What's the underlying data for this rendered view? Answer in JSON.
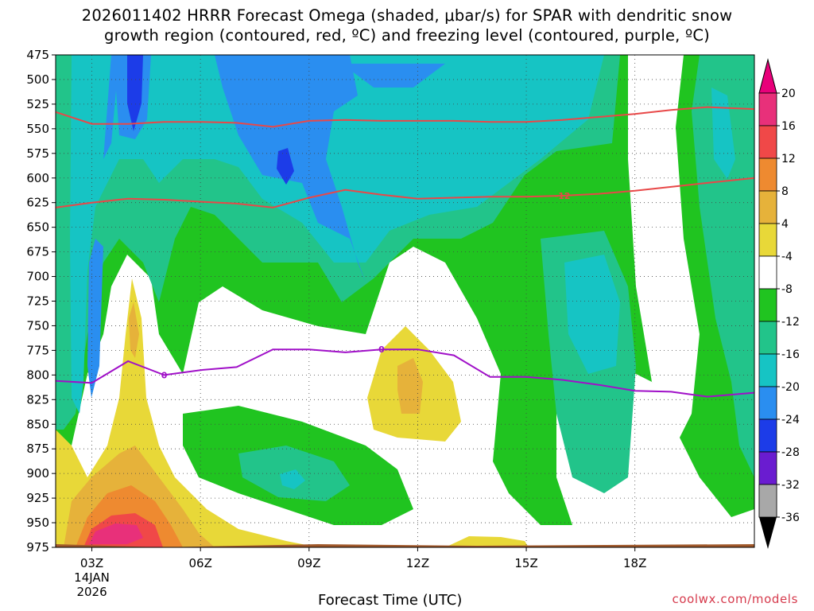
{
  "chart_data": {
    "type": "heatmap",
    "title_line1": "2026011402 HRRR Forecast Omega (shaded, μbar/s) for SPAR with dendritic snow",
    "title_line2": "growth region (contoured, red, ºC) and freezing level (contoured, purple, ºC)",
    "xlabel": "Forecast Time (UTC)",
    "credit": "coolwx.com/models",
    "x_range": [
      2,
      21.3
    ],
    "y_range": [
      475,
      975
    ],
    "x_ticks": [
      {
        "hour": 3,
        "label": "03Z",
        "sub1": "14JAN",
        "sub2": "2026"
      },
      {
        "hour": 6,
        "label": "06Z"
      },
      {
        "hour": 9,
        "label": "09Z"
      },
      {
        "hour": 12,
        "label": "12Z"
      },
      {
        "hour": 15,
        "label": "15Z"
      },
      {
        "hour": 18,
        "label": "18Z"
      }
    ],
    "y_ticks": [
      475,
      500,
      525,
      550,
      575,
      600,
      625,
      650,
      675,
      700,
      725,
      750,
      775,
      800,
      825,
      850,
      875,
      900,
      925,
      950,
      975
    ],
    "colorbar": {
      "labels": [
        "20",
        "16",
        "12",
        "8",
        "4",
        "-4",
        "-8",
        "-12",
        "-16",
        "-20",
        "-24",
        "-28",
        "-32",
        "-36"
      ],
      "colors": [
        "#e8307a",
        "#f04848",
        "#ee8a30",
        "#e6b23a",
        "#e8d838",
        "#ffffff",
        "#20c420",
        "#22c48a",
        "#16c4c4",
        "#2a8ef0",
        "#1c3ce8",
        "#6a1cd0",
        "#a20cc0",
        "#a8a8a8"
      ],
      "top_arrow": "#e8007a",
      "bottom_arrow": "#000000"
    },
    "series": [
      {
        "name": "-12 ºC isotherm (upper)",
        "color": "#e84848",
        "x": [
          2,
          3,
          4,
          5,
          6,
          7,
          8,
          9,
          10,
          11,
          12,
          13,
          14,
          15,
          16,
          17,
          18,
          19,
          20,
          21.3
        ],
        "y": [
          533,
          545,
          545,
          543,
          543,
          544,
          548,
          542,
          541,
          542,
          542,
          542,
          543,
          543,
          541,
          538,
          535,
          531,
          528,
          530
        ]
      },
      {
        "name": "-12 ºC isotherm (lower)",
        "color": "#e84848",
        "label": "-12",
        "x": [
          2,
          3,
          4,
          5,
          6,
          7,
          8,
          9,
          10,
          11,
          12,
          13,
          14,
          15,
          16,
          17,
          18,
          19,
          20,
          21.3
        ],
        "y": [
          630,
          625,
          621,
          622,
          624,
          626,
          630,
          620,
          612,
          617,
          621,
          620,
          619,
          619,
          618,
          616,
          613,
          609,
          605,
          600
        ]
      },
      {
        "name": "0 ºC freezing level",
        "color": "#a010c8",
        "label": "0",
        "x": [
          2,
          3,
          4,
          5,
          6,
          7,
          8,
          9,
          10,
          11,
          12,
          13,
          14,
          15,
          16,
          17,
          18,
          19,
          20,
          21.3
        ],
        "y": [
          806,
          808,
          786,
          800,
          795,
          792,
          774,
          774,
          777,
          774,
          774,
          780,
          802,
          802,
          805,
          810,
          816,
          817,
          822,
          818
        ]
      }
    ]
  }
}
